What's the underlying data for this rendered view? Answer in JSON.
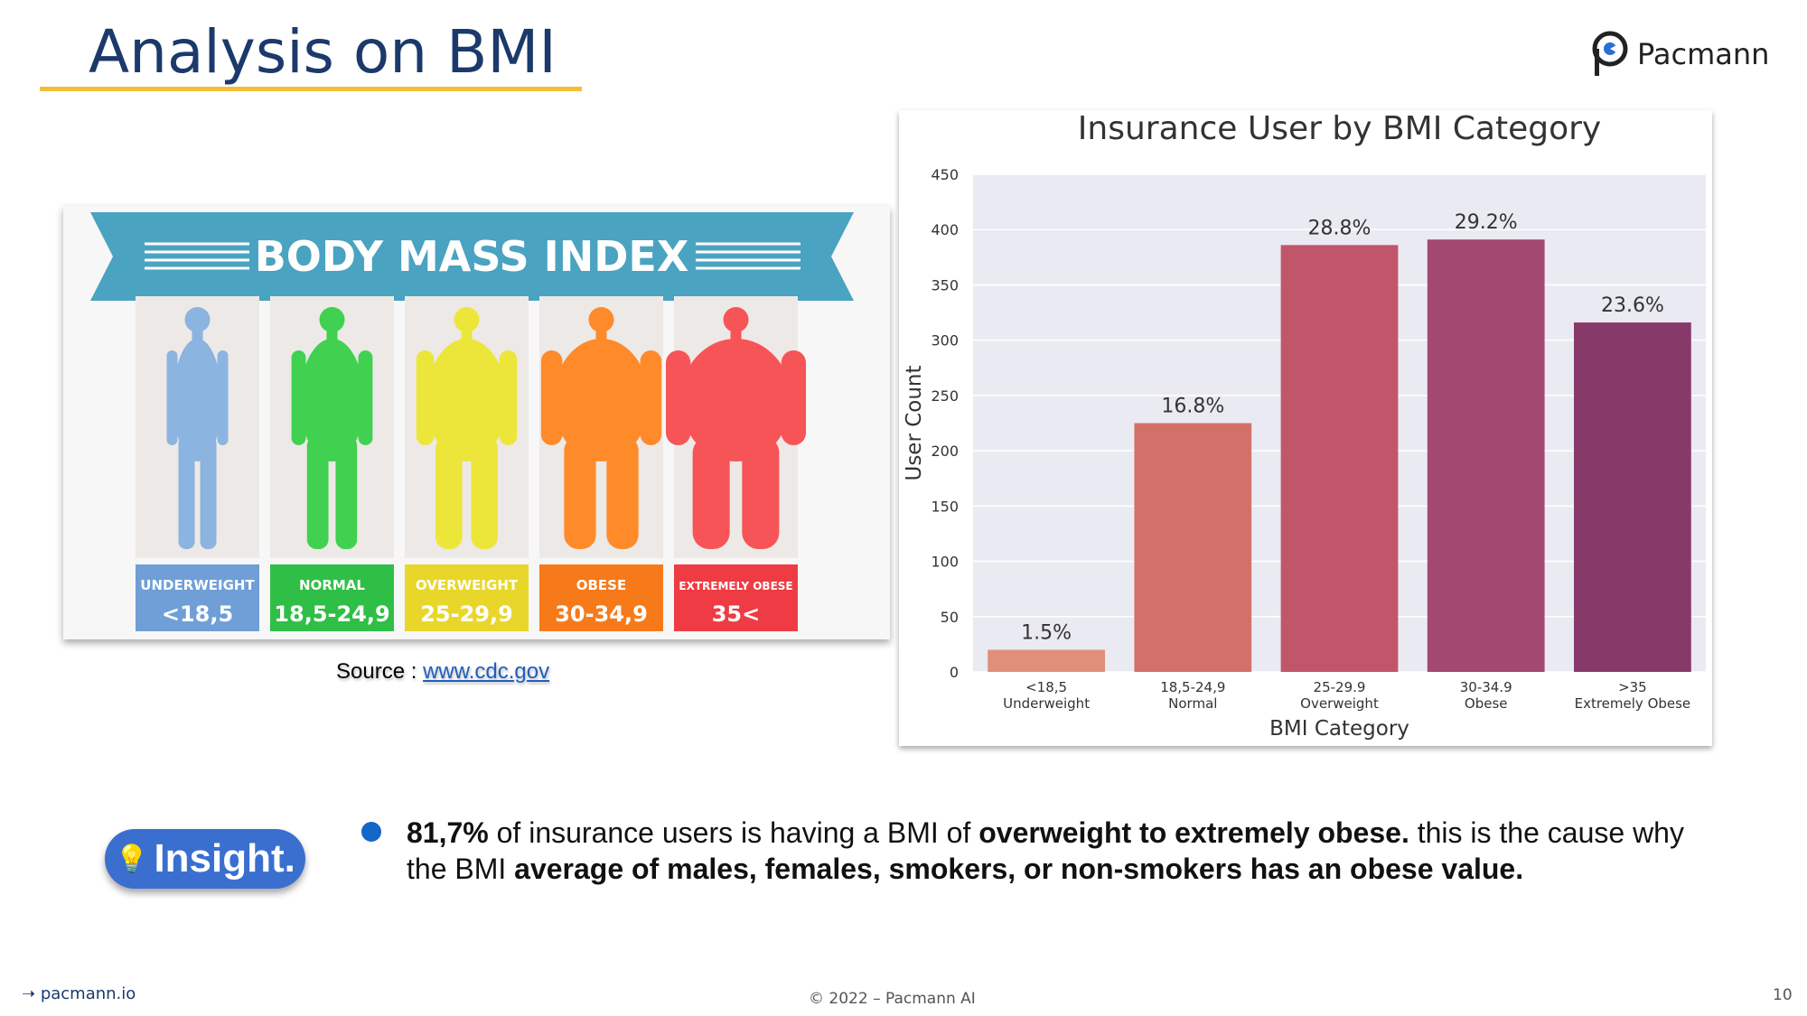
{
  "slide": {
    "title": "Analysis on BMI",
    "logo_text": "Pacmann",
    "footer_link": "pacmann.io",
    "footer_copyright": "© 2022 – Pacmann AI",
    "page_number": "10"
  },
  "bmi_infographic": {
    "banner": "BODY MASS INDEX",
    "categories": [
      {
        "label": "UNDERWEIGHT",
        "range": "<18,5",
        "color": "#8bb4e0",
        "label_bg": "#6f9fd6"
      },
      {
        "label": "NORMAL",
        "range": "18,5-24,9",
        "color": "#3fd14f",
        "label_bg": "#2fbf46"
      },
      {
        "label": "OVERWEIGHT",
        "range": "25-29,9",
        "color": "#ede63a",
        "label_bg": "#e8d72a"
      },
      {
        "label": "OBESE",
        "range": "30-34,9",
        "color": "#ff8a2a",
        "label_bg": "#f77a1a"
      },
      {
        "label": "EXTREMELY OBESE",
        "range": "35<",
        "color": "#f75458",
        "label_bg": "#ef3b43"
      }
    ]
  },
  "source": {
    "label": "Source :",
    "link": "www.cdc.gov"
  },
  "chart_data": {
    "type": "bar",
    "title": "Insurance User by BMI Category",
    "xlabel": "BMI Category",
    "ylabel": "User Count",
    "ylim": [
      0,
      450
    ],
    "yticks": [
      0,
      50,
      100,
      150,
      200,
      250,
      300,
      350,
      400,
      450
    ],
    "grid": true,
    "categories": [
      {
        "line1": "<18,5",
        "line2": "Underweight"
      },
      {
        "line1": "18,5-24,9",
        "line2": "Normal"
      },
      {
        "line1": "25-29.9",
        "line2": "Overweight"
      },
      {
        "line1": "30-34.9",
        "line2": "Obese"
      },
      {
        "line1": ">35",
        "line2": "Extremely Obese"
      }
    ],
    "values": [
      20,
      225,
      386,
      391,
      316
    ],
    "data_labels": [
      "1.5%",
      "16.8%",
      "28.8%",
      "29.2%",
      "23.6%"
    ],
    "colors": [
      "#e0907a",
      "#d4706a",
      "#c1566a",
      "#a3486e",
      "#873a6a"
    ]
  },
  "insight": {
    "badge": "Insight.",
    "bold1": "81,7%",
    "text1": " of insurance users is having a BMI of ",
    "bold2": "overweight to extremely obese.",
    "text2": " this is the cause why the BMI ",
    "bold3": "average of males, females, smokers, or non-smokers has an obese value."
  }
}
